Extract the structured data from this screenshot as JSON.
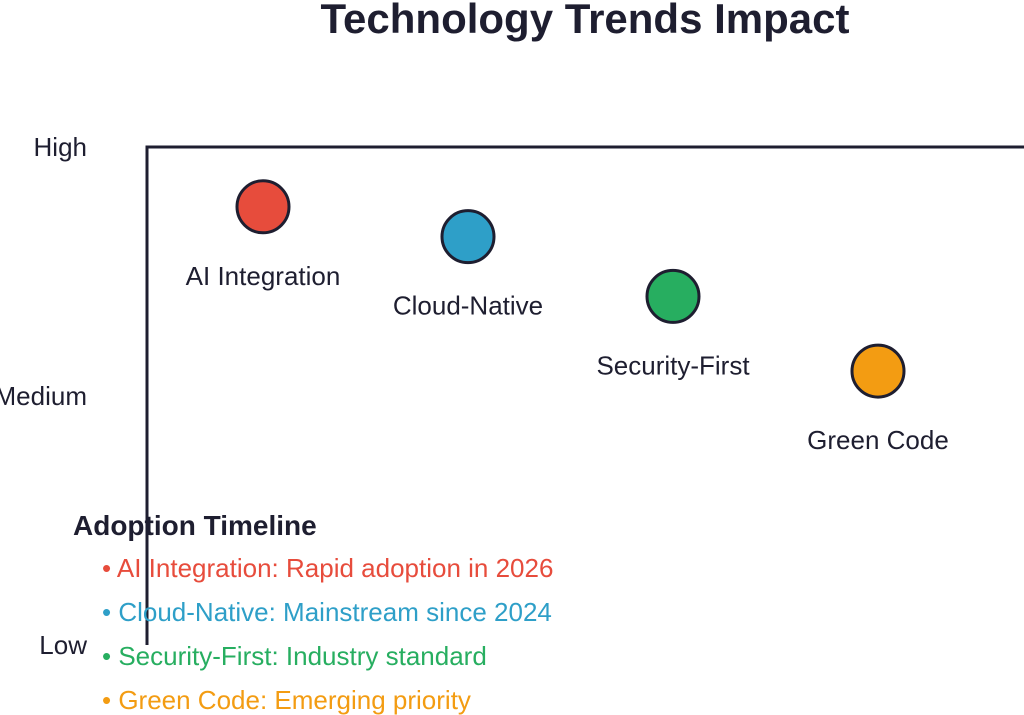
{
  "chart_data": {
    "type": "scatter",
    "title": "Technology Trends Impact",
    "y_ticks": [
      "High",
      "Medium",
      "Low"
    ],
    "points": [
      {
        "label": "AI Integration",
        "color": "#e74c3c",
        "impact": 0.88
      },
      {
        "label": "Cloud-Native",
        "color": "#2e9fc8",
        "impact": 0.82
      },
      {
        "label": "Security-First",
        "color": "#27ae60",
        "impact": 0.7
      },
      {
        "label": "Green Code",
        "color": "#f39c12",
        "impact": 0.55
      }
    ],
    "legend": {
      "title": "Adoption Timeline",
      "items": [
        {
          "text": "• AI Integration: Rapid adoption in 2026",
          "color": "#e74c3c"
        },
        {
          "text": "• Cloud-Native: Mainstream since 2024",
          "color": "#2e9fc8"
        },
        {
          "text": "• Security-First: Industry standard",
          "color": "#27ae60"
        },
        {
          "text": "• Green Code: Emerging priority",
          "color": "#f39c12"
        }
      ]
    }
  }
}
